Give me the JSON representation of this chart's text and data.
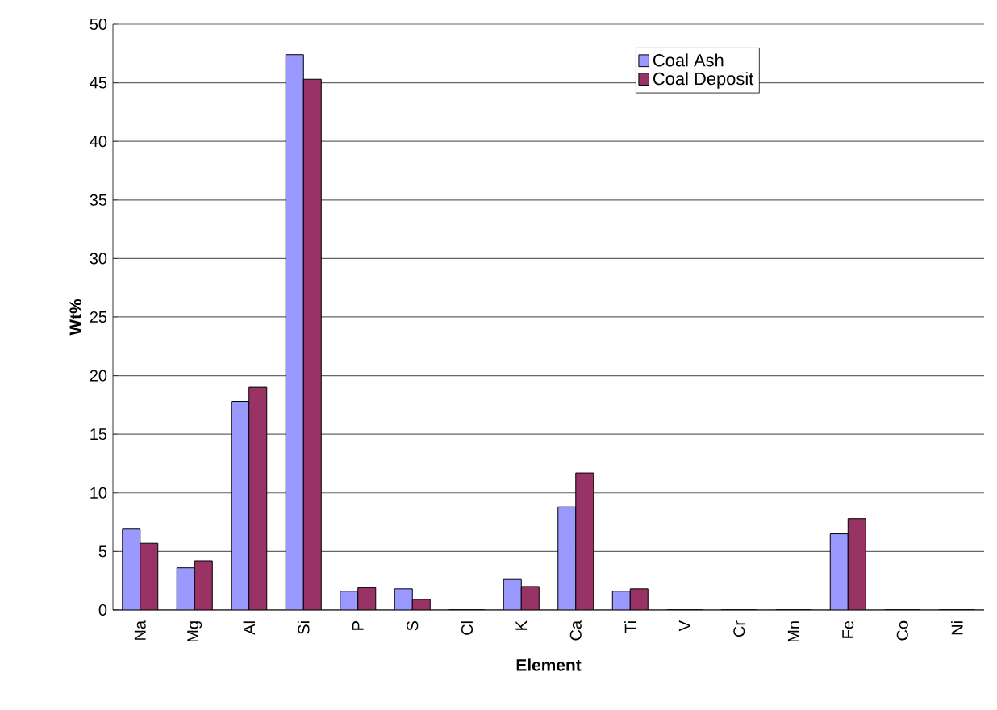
{
  "chart_data": {
    "type": "bar",
    "xlabel": "Element",
    "ylabel": "Wt%",
    "categories": [
      "Na",
      "Mg",
      "Al",
      "Si",
      "P",
      "S",
      "Cl",
      "K",
      "Ca",
      "Ti",
      "V",
      "Cr",
      "Mn",
      "Fe",
      "Co",
      "Ni"
    ],
    "series": [
      {
        "name": "Coal Ash",
        "color": "#9999ff",
        "values": [
          6.9,
          3.6,
          17.8,
          47.4,
          1.6,
          1.8,
          0,
          2.6,
          8.8,
          1.6,
          0,
          0,
          0,
          6.5,
          0,
          0
        ]
      },
      {
        "name": "Coal Deposit",
        "color": "#993366",
        "values": [
          5.7,
          4.2,
          19.0,
          45.3,
          1.9,
          0.9,
          0,
          2.0,
          11.7,
          1.8,
          0,
          0,
          0,
          7.8,
          0,
          0
        ]
      }
    ],
    "ylim": [
      0,
      50
    ],
    "yticks": [
      0,
      5,
      10,
      15,
      20,
      25,
      30,
      35,
      40,
      45,
      50
    ],
    "grid": "y",
    "legend": "top right"
  }
}
